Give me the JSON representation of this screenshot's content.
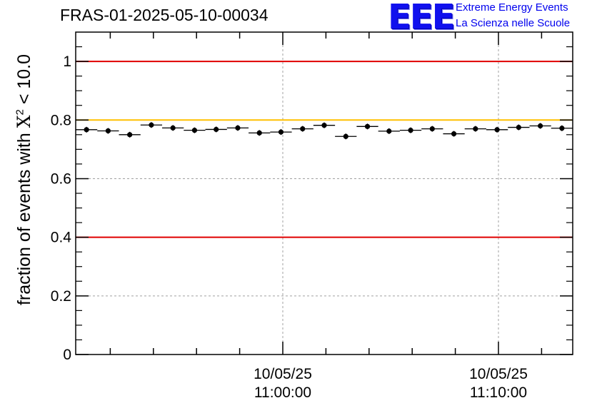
{
  "chart_data": {
    "type": "scatter",
    "title": "FRAS-01-2025-05-10-00034",
    "ylabel": {
      "prefix": "fraction of events with ",
      "symbol": "X",
      "superscript": "2",
      "suffix": " < 10.0"
    },
    "ylim": [
      0,
      1.1
    ],
    "y_ticks": [
      0,
      0.2,
      0.4,
      0.6,
      0.8,
      1
    ],
    "y_tick_labels": [
      "0",
      "0.2",
      "0.4",
      "0.6",
      "0.8",
      "1"
    ],
    "x_ticks": [
      {
        "date": "10/05/25",
        "time": "11:00:00"
      },
      {
        "date": "10/05/25",
        "time": "11:10:00"
      }
    ],
    "grid": true,
    "reference_lines": [
      {
        "y": 1.0,
        "color": "#e00000"
      },
      {
        "y": 0.8,
        "color": "#ffc000"
      },
      {
        "y": 0.4,
        "color": "#e00000"
      }
    ],
    "points": [
      0.767,
      0.763,
      0.75,
      0.783,
      0.773,
      0.765,
      0.768,
      0.773,
      0.756,
      0.759,
      0.77,
      0.782,
      0.744,
      0.778,
      0.762,
      0.765,
      0.77,
      0.753,
      0.77,
      0.767,
      0.775,
      0.78,
      0.772
    ]
  },
  "logo": {
    "mark": "EEE",
    "line1": "Extreme Energy Events",
    "line2": "La Scienza nelle Scuole"
  }
}
